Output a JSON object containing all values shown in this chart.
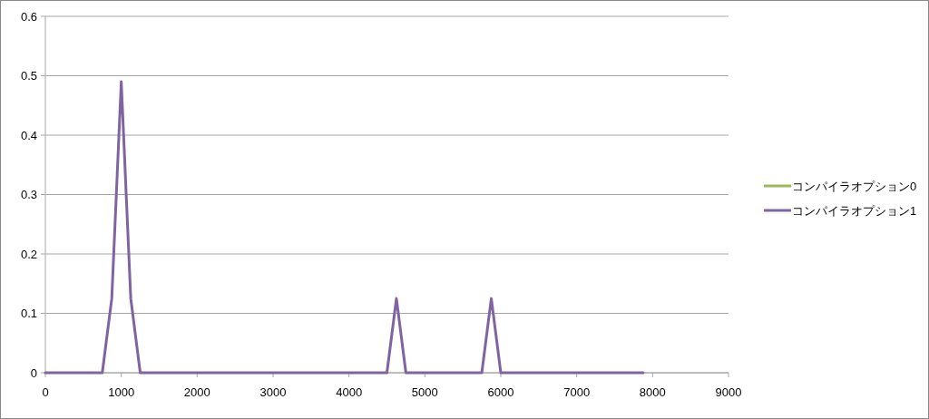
{
  "chart_data": {
    "type": "line",
    "x": [
      0,
      750,
      875,
      1000,
      1125,
      1250,
      4500,
      4625,
      4750,
      5750,
      5875,
      6000,
      7875
    ],
    "series": [
      {
        "name": "コンパイラオプション0",
        "color": "#9bbb59",
        "values": [
          null,
          null,
          null,
          null,
          null,
          null,
          null,
          null,
          null,
          null,
          null,
          null,
          null
        ]
      },
      {
        "name": "コンパイラオプション1",
        "color": "#8064a2",
        "values": [
          0,
          0,
          0.125,
          0.49,
          0.125,
          0,
          0,
          0.125,
          0,
          0,
          0.125,
          0,
          0
        ]
      }
    ],
    "xlim": [
      0,
      9000
    ],
    "xticks": [
      0,
      1000,
      2000,
      3000,
      4000,
      5000,
      6000,
      7000,
      8000,
      9000
    ],
    "ylim": [
      0,
      0.6
    ],
    "yticks": [
      0,
      0.1,
      0.2,
      0.3,
      0.4,
      0.5,
      0.6
    ],
    "grid": "y",
    "legend": "right",
    "marker": "none",
    "line_style": "solid"
  }
}
